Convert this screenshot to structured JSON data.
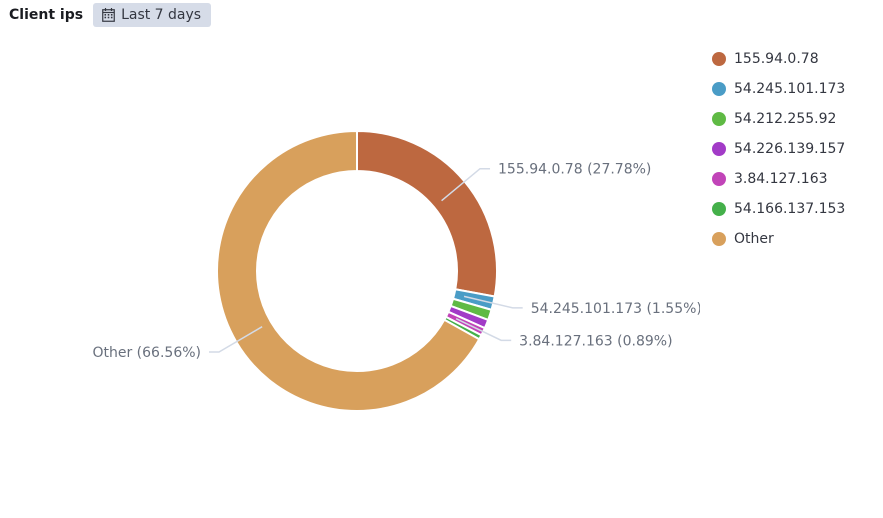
{
  "panel": {
    "title": "Client ips",
    "time_range_label": "Last 7 days",
    "time_range_icon": "calendar-icon"
  },
  "colors": {
    "155.94.0.78": "#bd6840",
    "54.245.101.173": "#4a9cc6",
    "54.212.255.92": "#5fba44",
    "54.226.139.157": "#a23bc7",
    "3.84.127.163": "#c144b8",
    "54.166.137.153": "#44b04a",
    "Other": "#d8a05c"
  },
  "legend": [
    {
      "label": "155.94.0.78"
    },
    {
      "label": "54.245.101.173"
    },
    {
      "label": "54.212.255.92"
    },
    {
      "label": "54.226.139.157"
    },
    {
      "label": "3.84.127.163"
    },
    {
      "label": "54.166.137.153"
    },
    {
      "label": "Other"
    }
  ],
  "chart_data": {
    "type": "pie",
    "donut": true,
    "legend_position": "right",
    "slices": [
      {
        "label": "155.94.0.78",
        "percent": 27.78,
        "callout": "155.94.0.78 (27.78%)"
      },
      {
        "label": "54.245.101.173",
        "percent": 1.55,
        "callout": "54.245.101.173 (1.55%)"
      },
      {
        "label": "54.212.255.92",
        "percent": 1.2
      },
      {
        "label": "54.226.139.157",
        "percent": 1.0
      },
      {
        "label": "3.84.127.163",
        "percent": 0.89,
        "callout": "3.84.127.163 (0.89%)"
      },
      {
        "label": "54.166.137.153",
        "percent": 0.52
      },
      {
        "label": "Other",
        "percent": 66.56,
        "callout": "Other (66.56%)"
      }
    ]
  }
}
